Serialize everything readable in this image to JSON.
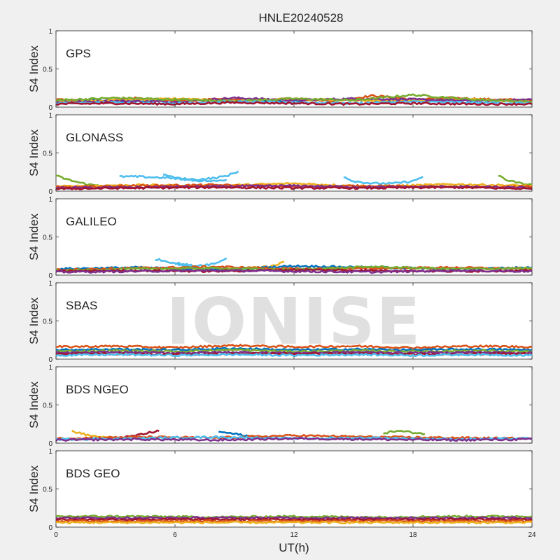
{
  "figure": {
    "title": "HNLE20240528",
    "watermark": "IONISE",
    "xlabel": "UT(h)",
    "xticks": [
      "0",
      "6",
      "12",
      "18",
      "24"
    ]
  },
  "chart_data": [
    {
      "type": "line",
      "panel": "GPS",
      "ylabel": "S4 Index",
      "xlabel": "UT(h)",
      "xlim": [
        0,
        24
      ],
      "ylim": [
        0,
        1
      ],
      "yticks": [
        "0",
        "0.5",
        "1"
      ],
      "grid": false,
      "colors": [
        "#0072bd",
        "#d95319",
        "#edb120",
        "#7e2f8e",
        "#77ac30",
        "#4dbeee",
        "#a2142f"
      ],
      "series": [
        {
          "color": "#0072bd",
          "x": [
            0,
            2,
            4,
            6,
            8,
            10,
            12,
            14,
            16,
            18,
            20,
            22,
            24
          ],
          "y": [
            0.08,
            0.09,
            0.07,
            0.1,
            0.08,
            0.09,
            0.08,
            0.1,
            0.09,
            0.08,
            0.1,
            0.09,
            0.08
          ]
        },
        {
          "color": "#d95319",
          "x": [
            0,
            2,
            4,
            6,
            8,
            10,
            12,
            14,
            16,
            18,
            20,
            22,
            24
          ],
          "y": [
            0.1,
            0.07,
            0.12,
            0.08,
            0.1,
            0.09,
            0.11,
            0.08,
            0.15,
            0.1,
            0.12,
            0.1,
            0.09
          ]
        },
        {
          "color": "#edb120",
          "x": [
            0,
            3,
            6,
            9,
            12,
            15,
            18,
            21,
            24
          ],
          "y": [
            0.07,
            0.09,
            0.11,
            0.08,
            0.1,
            0.09,
            0.08,
            0.1,
            0.07
          ]
        },
        {
          "color": "#7e2f8e",
          "x": [
            0,
            3,
            6,
            9,
            12,
            15,
            18,
            21,
            24
          ],
          "y": [
            0.06,
            0.08,
            0.07,
            0.12,
            0.09,
            0.11,
            0.1,
            0.08,
            0.1
          ]
        },
        {
          "color": "#77ac30",
          "x": [
            0,
            3,
            6,
            9,
            12,
            15,
            18,
            21,
            24
          ],
          "y": [
            0.09,
            0.12,
            0.1,
            0.08,
            0.11,
            0.09,
            0.16,
            0.1,
            0.07
          ]
        },
        {
          "color": "#4dbeee",
          "x": [
            0,
            3,
            6,
            9,
            12,
            15,
            18,
            21,
            24
          ],
          "y": [
            0.05,
            0.06,
            0.05,
            0.07,
            0.06,
            0.05,
            0.07,
            0.06,
            0.05
          ]
        },
        {
          "color": "#a2142f",
          "x": [
            0,
            3,
            6,
            9,
            12,
            15,
            18,
            21,
            24
          ],
          "y": [
            0.04,
            0.05,
            0.04,
            0.06,
            0.05,
            0.04,
            0.05,
            0.04,
            0.04
          ]
        }
      ]
    },
    {
      "type": "line",
      "panel": "GLONASS",
      "ylabel": "S4 Index",
      "xlabel": "UT(h)",
      "xlim": [
        0,
        24
      ],
      "ylim": [
        0,
        1
      ],
      "yticks": [
        "0",
        "0.5",
        "1"
      ],
      "grid": false,
      "series": [
        {
          "color": "#4dbeee",
          "x": [
            3.2,
            4,
            5,
            6,
            7,
            8,
            8.6,
            9.2
          ],
          "y": [
            0.19,
            0.19,
            0.18,
            0.17,
            0.15,
            0.17,
            0.2,
            0.26
          ]
        },
        {
          "color": "#4dbeee",
          "x": [
            5.4,
            6,
            7,
            8,
            8.6
          ],
          "y": [
            0.22,
            0.17,
            0.14,
            0.13,
            0.15
          ]
        },
        {
          "color": "#4dbeee",
          "x": [
            14.5,
            15,
            16,
            17,
            18,
            18.5
          ],
          "y": [
            0.19,
            0.13,
            0.1,
            0.1,
            0.13,
            0.19
          ]
        },
        {
          "color": "#77ac30",
          "x": [
            0,
            0.6,
            1.2,
            1.8,
            2.6,
            3.5
          ],
          "y": [
            0.2,
            0.15,
            0.11,
            0.08,
            0.07,
            0.06
          ]
        },
        {
          "color": "#77ac30",
          "x": [
            22.3,
            22.8,
            23.4,
            24
          ],
          "y": [
            0.2,
            0.14,
            0.1,
            0.08
          ]
        },
        {
          "color": "#edb120",
          "x": [
            0,
            4,
            8,
            12,
            16,
            20,
            24
          ],
          "y": [
            0.06,
            0.08,
            0.07,
            0.1,
            0.06,
            0.09,
            0.07
          ]
        },
        {
          "color": "#d95319",
          "x": [
            0,
            4,
            8,
            12,
            16,
            20,
            24
          ],
          "y": [
            0.05,
            0.07,
            0.08,
            0.06,
            0.07,
            0.05,
            0.06
          ]
        },
        {
          "color": "#7e2f8e",
          "x": [
            0,
            4,
            8,
            12,
            16,
            20,
            24
          ],
          "y": [
            0.04,
            0.05,
            0.06,
            0.07,
            0.05,
            0.06,
            0.04
          ]
        },
        {
          "color": "#a2142f",
          "x": [
            0,
            4,
            8,
            12,
            16,
            20,
            24
          ],
          "y": [
            0.03,
            0.04,
            0.05,
            0.04,
            0.04,
            0.05,
            0.03
          ]
        }
      ]
    },
    {
      "type": "line",
      "panel": "GALILEO",
      "ylabel": "S4 Index",
      "xlabel": "UT(h)",
      "xlim": [
        0,
        24
      ],
      "ylim": [
        0,
        1
      ],
      "yticks": [
        "0",
        "0.5",
        "1"
      ],
      "grid": false,
      "series": [
        {
          "color": "#4dbeee",
          "x": [
            5,
            6,
            7,
            8,
            8.6
          ],
          "y": [
            0.21,
            0.16,
            0.12,
            0.15,
            0.22
          ]
        },
        {
          "color": "#4dbeee",
          "x": [
            6,
            7,
            8,
            9,
            10
          ],
          "y": [
            0.15,
            0.1,
            0.08,
            0.07,
            0.06
          ]
        },
        {
          "color": "#edb120",
          "x": [
            8,
            9,
            10,
            11,
            11.5
          ],
          "y": [
            0.08,
            0.09,
            0.1,
            0.12,
            0.18
          ]
        },
        {
          "color": "#0072bd",
          "x": [
            0,
            4,
            8,
            12,
            16,
            20,
            24
          ],
          "y": [
            0.08,
            0.1,
            0.07,
            0.12,
            0.1,
            0.08,
            0.1
          ]
        },
        {
          "color": "#d95319",
          "x": [
            0,
            4,
            8,
            12,
            16,
            20,
            24
          ],
          "y": [
            0.07,
            0.09,
            0.11,
            0.08,
            0.09,
            0.1,
            0.08
          ]
        },
        {
          "color": "#77ac30",
          "x": [
            0,
            4,
            8,
            12,
            16,
            20,
            24
          ],
          "y": [
            0.06,
            0.08,
            0.09,
            0.07,
            0.11,
            0.08,
            0.09
          ]
        },
        {
          "color": "#a2142f",
          "x": [
            0,
            4,
            8,
            12,
            16,
            20,
            24
          ],
          "y": [
            0.05,
            0.06,
            0.05,
            0.07,
            0.06,
            0.05,
            0.06
          ]
        },
        {
          "color": "#7e2f8e",
          "x": [
            0,
            4,
            8,
            12,
            16,
            20,
            24
          ],
          "y": [
            0.04,
            0.05,
            0.06,
            0.05,
            0.04,
            0.06,
            0.05
          ]
        }
      ]
    },
    {
      "type": "line",
      "panel": "SBAS",
      "ylabel": "S4 Index",
      "xlabel": "UT(h)",
      "xlim": [
        0,
        24
      ],
      "ylim": [
        0,
        1
      ],
      "yticks": [
        "0",
        "0.5",
        "1"
      ],
      "grid": false,
      "series": [
        {
          "color": "#d95319",
          "x": [
            0,
            3,
            6,
            9,
            12,
            15,
            18,
            21,
            24
          ],
          "y": [
            0.16,
            0.17,
            0.15,
            0.18,
            0.16,
            0.17,
            0.15,
            0.17,
            0.16
          ]
        },
        {
          "color": "#0072bd",
          "x": [
            0,
            3,
            6,
            9,
            12,
            15,
            18,
            21,
            24
          ],
          "y": [
            0.12,
            0.13,
            0.12,
            0.14,
            0.12,
            0.13,
            0.12,
            0.13,
            0.12
          ]
        },
        {
          "color": "#77ac30",
          "x": [
            0,
            3,
            6,
            9,
            12,
            15,
            18,
            21,
            24
          ],
          "y": [
            0.1,
            0.11,
            0.1,
            0.12,
            0.1,
            0.11,
            0.1,
            0.11,
            0.1
          ]
        },
        {
          "color": "#7e2f8e",
          "x": [
            0,
            3,
            6,
            9,
            12,
            15,
            18,
            21,
            24
          ],
          "y": [
            0.08,
            0.09,
            0.08,
            0.09,
            0.08,
            0.09,
            0.08,
            0.09,
            0.08
          ]
        },
        {
          "color": "#a2142f",
          "x": [
            0,
            3,
            6,
            9,
            12,
            15,
            18,
            21,
            24
          ],
          "y": [
            0.07,
            0.07,
            0.06,
            0.07,
            0.07,
            0.07,
            0.06,
            0.07,
            0.07
          ]
        },
        {
          "color": "#4dbeee",
          "x": [
            0,
            3,
            6,
            9,
            12,
            15,
            18,
            21,
            24
          ],
          "y": [
            0.05,
            0.06,
            0.05,
            0.06,
            0.05,
            0.06,
            0.05,
            0.06,
            0.05
          ]
        }
      ]
    },
    {
      "type": "line",
      "panel": "BDS NGEO",
      "ylabel": "S4 Index",
      "xlabel": "UT(h)",
      "xlim": [
        0,
        24
      ],
      "ylim": [
        0,
        1
      ],
      "yticks": [
        "0",
        "0.5",
        "1"
      ],
      "grid": false,
      "series": [
        {
          "color": "#edb120",
          "x": [
            0.8,
            1.5,
            2.2,
            3
          ],
          "y": [
            0.16,
            0.11,
            0.08,
            0.06
          ]
        },
        {
          "color": "#a2142f",
          "x": [
            3.2,
            4,
            4.8,
            5.2
          ],
          "y": [
            0.06,
            0.1,
            0.14,
            0.16
          ]
        },
        {
          "color": "#0072bd",
          "x": [
            8.2,
            9,
            10,
            11
          ],
          "y": [
            0.15,
            0.12,
            0.08,
            0.06
          ]
        },
        {
          "color": "#77ac30",
          "x": [
            16.5,
            17.2,
            18,
            18.6
          ],
          "y": [
            0.13,
            0.16,
            0.14,
            0.12
          ]
        },
        {
          "color": "#d95319",
          "x": [
            0,
            4,
            8,
            12,
            16,
            20,
            24
          ],
          "y": [
            0.06,
            0.08,
            0.07,
            0.1,
            0.08,
            0.07,
            0.06
          ]
        },
        {
          "color": "#4dbeee",
          "x": [
            0,
            4,
            8,
            12,
            16,
            20,
            24
          ],
          "y": [
            0.05,
            0.06,
            0.08,
            0.06,
            0.07,
            0.05,
            0.06
          ]
        },
        {
          "color": "#7e2f8e",
          "x": [
            0,
            4,
            8,
            12,
            16,
            20,
            24
          ],
          "y": [
            0.04,
            0.05,
            0.04,
            0.06,
            0.05,
            0.04,
            0.05
          ]
        }
      ]
    },
    {
      "type": "line",
      "panel": "BDS GEO",
      "ylabel": "S4 Index",
      "xlabel": "UT(h)",
      "xlim": [
        0,
        24
      ],
      "ylim": [
        0,
        1
      ],
      "yticks": [
        "0",
        "0.5",
        "1"
      ],
      "grid": false,
      "series": [
        {
          "color": "#77ac30",
          "x": [
            0,
            4,
            8,
            12,
            16,
            20,
            24
          ],
          "y": [
            0.14,
            0.14,
            0.13,
            0.14,
            0.13,
            0.14,
            0.14
          ]
        },
        {
          "color": "#7e2f8e",
          "x": [
            0,
            4,
            8,
            12,
            16,
            20,
            24
          ],
          "y": [
            0.12,
            0.12,
            0.12,
            0.12,
            0.12,
            0.12,
            0.12
          ]
        },
        {
          "color": "#a2142f",
          "x": [
            0,
            4,
            8,
            12,
            16,
            20,
            24
          ],
          "y": [
            0.1,
            0.1,
            0.1,
            0.1,
            0.1,
            0.1,
            0.1
          ]
        },
        {
          "color": "#d95319",
          "x": [
            0,
            4,
            8,
            12,
            16,
            20,
            24
          ],
          "y": [
            0.08,
            0.08,
            0.08,
            0.08,
            0.08,
            0.08,
            0.08
          ]
        },
        {
          "color": "#edb120",
          "x": [
            0,
            4,
            8,
            12,
            16,
            20,
            24
          ],
          "y": [
            0.06,
            0.06,
            0.06,
            0.06,
            0.06,
            0.06,
            0.06
          ]
        }
      ]
    }
  ]
}
